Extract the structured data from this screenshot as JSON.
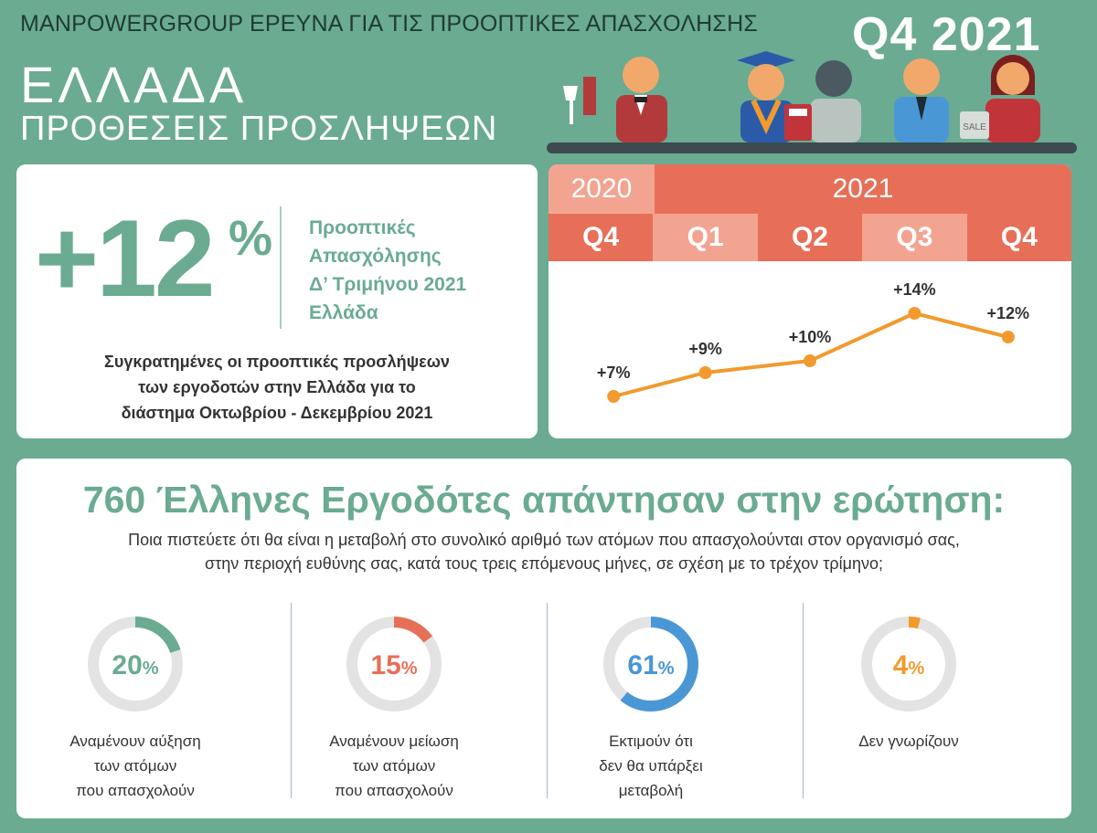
{
  "header": {
    "survey_title": "MANPOWERGROUP ΕΡΕΥΝΑ ΓΙΑ ΤΙΣ ΠΡΟΟΠΤΙΚΕΣ ΑΠΑΣΧΟΛΗΣΗΣ",
    "quarter": "Q4 2021",
    "country": "ΕΛΛΑΔΑ",
    "subtitle": "ΠΡΟΘΕΣΕΙΣ ΠΡΟΣΛΗΨΕΩΝ",
    "sale_sign": "SALE"
  },
  "headline": {
    "value": "+12",
    "percent_sign": "%",
    "label_lines": [
      "Προοπτικές",
      "Απασχόλησης",
      "Δ’ Τριμήνου 2021",
      "Ελλάδα"
    ],
    "summary_lines": [
      "Συγκρατημένες οι προοπτικές προσλήψεων",
      "των εργοδοτών στην Ελλάδα για το",
      "διάστημα Οκτωβρίου - Δεκεμβρίου 2021"
    ]
  },
  "chart_data": {
    "type": "line",
    "years": [
      "2020",
      "2021"
    ],
    "categories": [
      "Q4",
      "Q1",
      "Q2",
      "Q3",
      "Q4"
    ],
    "values": [
      7,
      9,
      10,
      14,
      12
    ],
    "labels": [
      "+7%",
      "+9%",
      "+10%",
      "+14%",
      "+12%"
    ],
    "ylim": [
      5,
      15
    ],
    "colors": {
      "line": "#f29a2e",
      "year_2020": "#f2a491",
      "year_2021": "#e76f58",
      "q_dark": "#e76f58",
      "q_light": "#f2a491"
    }
  },
  "survey": {
    "title": "760 Έλληνες Εργοδότες απάντησαν στην ερώτηση:",
    "question_lines": [
      "Ποια πιστεύετε ότι θα είναι η μεταβολή στο συνολικό αριθμό των ατόμων που απασχολούνται στον οργανισμό σας,",
      "στην περιοχή ευθύνης σας, κατά τους τρεις επόμενους μήνες, σε σχέση με το τρέχον τρίμηνο;"
    ],
    "items": [
      {
        "value": 20,
        "number": "20",
        "sign": "%",
        "color": "#6aab92",
        "label_lines": [
          "Αναμένουν αύξηση",
          "των ατόμων",
          "που απασχολούν"
        ]
      },
      {
        "value": 15,
        "number": "15",
        "sign": "%",
        "color": "#e76f58",
        "label_lines": [
          "Αναμένουν μείωση",
          "των ατόμων",
          "που απασχολούν"
        ]
      },
      {
        "value": 61,
        "number": "61",
        "sign": "%",
        "color": "#4a97d6",
        "label_lines": [
          "Εκτιμούν ότι",
          "δεν θα υπάρξει",
          "μεταβολή"
        ]
      },
      {
        "value": 4,
        "number": "4",
        "sign": "%",
        "color": "#f29a2e",
        "label_lines": [
          "Δεν γνωρίζουν"
        ]
      }
    ]
  }
}
